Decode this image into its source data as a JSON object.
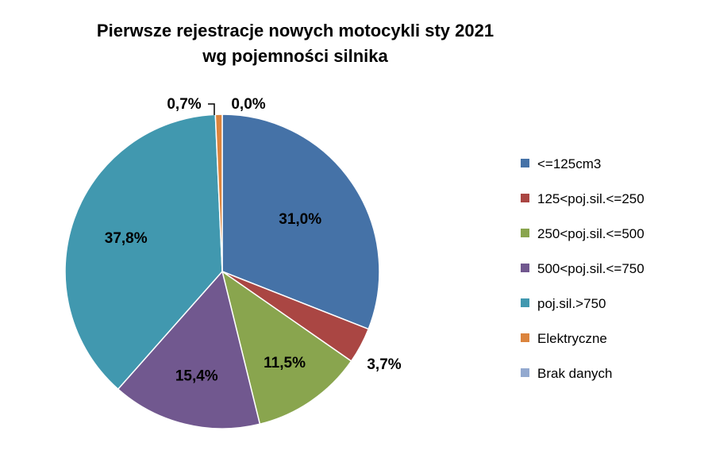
{
  "chart_data": {
    "type": "pie",
    "title": "Pierwsze rejestracje nowych motocykli sty 2021",
    "subtitle": "wg pojemności silnika",
    "categories": [
      "<=125cm3",
      "125<poj.sil.<=250",
      "250<poj.sil.<=500",
      "500<poj.sil.<=750",
      "poj.sil.>750",
      "Elektryczne",
      "Brak danych"
    ],
    "values": [
      31.0,
      3.7,
      11.5,
      15.4,
      37.8,
      0.7,
      0.0
    ],
    "labels": [
      "31,0%",
      "3,7%",
      "11,5%",
      "15,4%",
      "37,8%",
      "0,7%",
      "0,0%"
    ],
    "colors": [
      "#4572A7",
      "#AA4643",
      "#89A54E",
      "#71588F",
      "#4198AF",
      "#DB843D",
      "#93A9CF"
    ],
    "legend": "right",
    "start_angle_deg": 0,
    "direction": "clockwise"
  }
}
